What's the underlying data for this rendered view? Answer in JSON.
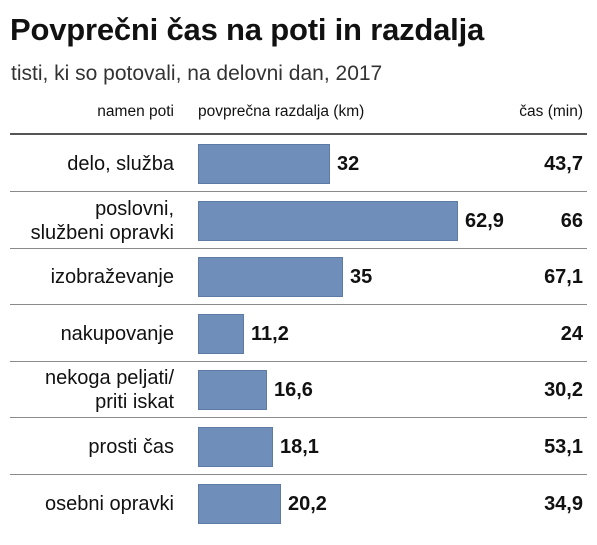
{
  "title": "Povprečni čas na poti in razdalja",
  "subtitle": "tisti, ki so potovali, na delovni dan, 2017",
  "headers": {
    "purpose": "namen poti",
    "distance": "povprečna razdalja (km)",
    "time": "čas (min)"
  },
  "colors": {
    "bar": "#6f8eba"
  },
  "chart_data": {
    "type": "bar",
    "orientation": "horizontal",
    "title": "Povprečni čas na poti in razdalja",
    "subtitle": "tisti, ki so potovali, na delovni dan, 2017",
    "categories": [
      [
        "delo, služba"
      ],
      [
        "poslovni,",
        "službeni opravki"
      ],
      [
        "izobraževanje"
      ],
      [
        "nakupovanje"
      ],
      [
        "nekoga peljati/",
        "priti iskat"
      ],
      [
        "prosti čas"
      ],
      [
        "osebni opravki"
      ]
    ],
    "series": [
      {
        "name": "povprečna razdalja (km)",
        "values": [
          32,
          62.9,
          35,
          11.2,
          16.6,
          18.1,
          20.2
        ],
        "labels": [
          "32",
          "62,9",
          "35",
          "11,2",
          "16,6",
          "18,1",
          "20,2"
        ]
      },
      {
        "name": "čas (min)",
        "values": [
          43.7,
          66,
          67.1,
          24,
          30.2,
          53.1,
          34.9
        ],
        "labels": [
          "43,7",
          "66",
          "67,1",
          "24",
          "30,2",
          "53,1",
          "34,9"
        ]
      }
    ]
  }
}
